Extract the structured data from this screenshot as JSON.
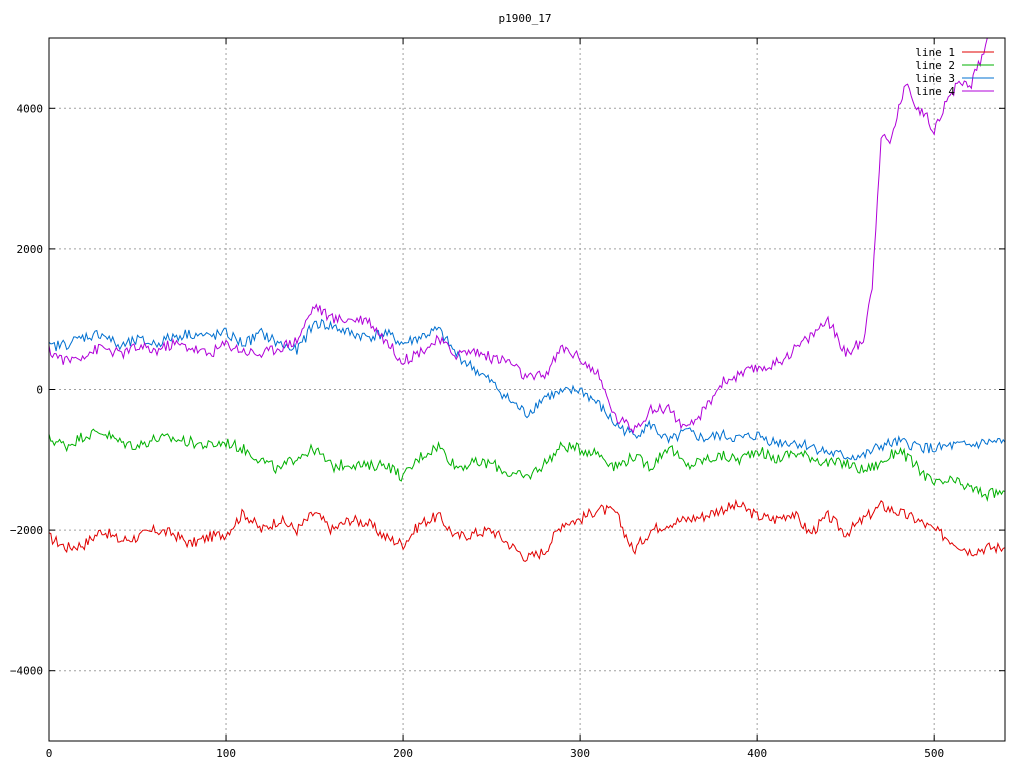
{
  "chart_data": {
    "type": "line",
    "title": "p1900_17",
    "xlabel": "",
    "ylabel": "",
    "xlim": [
      0,
      540
    ],
    "ylim": [
      -5000,
      5000
    ],
    "xticks": [
      0,
      100,
      200,
      300,
      400,
      500
    ],
    "yticks": [
      -4000,
      -2000,
      0,
      2000,
      4000
    ],
    "ytick_labels": [
      "−4000",
      "−2000",
      "0",
      "2000",
      "4000"
    ],
    "grid": true,
    "legend_position": "top-right",
    "series": [
      {
        "name": "line 1",
        "color": "#e00000",
        "x": [
          0,
          10,
          20,
          30,
          40,
          50,
          60,
          70,
          80,
          90,
          100,
          110,
          120,
          130,
          140,
          150,
          160,
          170,
          180,
          190,
          200,
          210,
          220,
          230,
          240,
          250,
          260,
          270,
          280,
          290,
          300,
          310,
          320,
          330,
          340,
          350,
          360,
          370,
          380,
          390,
          400,
          410,
          420,
          430,
          440,
          450,
          460,
          470,
          480,
          490,
          500,
          510,
          520,
          530,
          540
        ],
        "y": [
          -2100,
          -2250,
          -2200,
          -2000,
          -2150,
          -2100,
          -2000,
          -2050,
          -2200,
          -2100,
          -2050,
          -1750,
          -2000,
          -1850,
          -2000,
          -1750,
          -2000,
          -1850,
          -1900,
          -2100,
          -2200,
          -1900,
          -1800,
          -2100,
          -2050,
          -2000,
          -2200,
          -2400,
          -2300,
          -1900,
          -1850,
          -1700,
          -1750,
          -2300,
          -2000,
          -1900,
          -1850,
          -1800,
          -1700,
          -1650,
          -1800,
          -1850,
          -1750,
          -2050,
          -1800,
          -2050,
          -1850,
          -1650,
          -1750,
          -1850,
          -2000,
          -2150,
          -2300,
          -2250,
          -2250
        ]
      },
      {
        "name": "line 2",
        "color": "#00b000",
        "x": [
          0,
          10,
          20,
          30,
          40,
          50,
          60,
          70,
          80,
          90,
          100,
          110,
          120,
          130,
          140,
          150,
          160,
          170,
          180,
          190,
          200,
          210,
          220,
          230,
          240,
          250,
          260,
          270,
          280,
          290,
          300,
          310,
          320,
          330,
          340,
          350,
          360,
          370,
          380,
          390,
          400,
          410,
          420,
          430,
          440,
          450,
          460,
          470,
          480,
          490,
          500,
          510,
          520,
          530,
          540
        ],
        "y": [
          -700,
          -800,
          -650,
          -600,
          -750,
          -800,
          -700,
          -700,
          -750,
          -800,
          -750,
          -850,
          -1000,
          -1150,
          -950,
          -850,
          -1100,
          -1050,
          -1100,
          -1050,
          -1250,
          -950,
          -800,
          -1100,
          -1050,
          -1050,
          -1200,
          -1250,
          -1050,
          -800,
          -850,
          -900,
          -1100,
          -950,
          -1100,
          -800,
          -1100,
          -1000,
          -950,
          -1000,
          -850,
          -1000,
          -900,
          -950,
          -1050,
          -1050,
          -1150,
          -1050,
          -850,
          -1100,
          -1350,
          -1300,
          -1400,
          -1500,
          -1450
        ]
      },
      {
        "name": "line 3",
        "color": "#0070d0",
        "x": [
          0,
          10,
          20,
          30,
          40,
          50,
          60,
          70,
          80,
          90,
          100,
          110,
          120,
          130,
          140,
          150,
          160,
          170,
          180,
          190,
          200,
          210,
          220,
          230,
          240,
          250,
          260,
          270,
          280,
          290,
          300,
          310,
          320,
          330,
          340,
          350,
          360,
          370,
          380,
          390,
          400,
          410,
          420,
          430,
          440,
          450,
          460,
          470,
          480,
          490,
          500,
          510,
          520,
          530,
          540
        ],
        "y": [
          600,
          650,
          750,
          800,
          600,
          700,
          650,
          750,
          800,
          750,
          800,
          650,
          800,
          650,
          550,
          950,
          900,
          800,
          750,
          800,
          650,
          750,
          850,
          500,
          300,
          100,
          -150,
          -350,
          -100,
          -50,
          0,
          -200,
          -500,
          -650,
          -500,
          -750,
          -600,
          -700,
          -650,
          -700,
          -650,
          -750,
          -750,
          -800,
          -900,
          -950,
          -950,
          -800,
          -750,
          -800,
          -850,
          -800,
          -800,
          -750,
          -750
        ]
      },
      {
        "name": "line 4",
        "color": "#b000d8",
        "x": [
          0,
          10,
          20,
          30,
          40,
          50,
          60,
          70,
          80,
          90,
          100,
          110,
          120,
          130,
          140,
          150,
          160,
          170,
          180,
          190,
          200,
          210,
          220,
          230,
          240,
          250,
          260,
          270,
          280,
          290,
          300,
          310,
          320,
          330,
          340,
          350,
          360,
          370,
          380,
          390,
          400,
          410,
          420,
          430,
          440,
          450,
          460,
          465,
          470,
          475,
          480,
          485,
          490,
          495,
          500,
          505,
          510,
          515,
          520,
          525,
          530
        ],
        "y": [
          550,
          400,
          500,
          600,
          500,
          600,
          550,
          650,
          600,
          500,
          650,
          550,
          500,
          600,
          700,
          1200,
          1000,
          1000,
          1000,
          700,
          400,
          550,
          700,
          500,
          550,
          450,
          400,
          150,
          200,
          600,
          450,
          200,
          -400,
          -550,
          -300,
          -250,
          -600,
          -300,
          100,
          200,
          300,
          350,
          550,
          750,
          1000,
          500,
          700,
          1500,
          3600,
          3500,
          4000,
          4400,
          4000,
          3900,
          3700,
          4000,
          4200,
          4400,
          4300,
          4600,
          5000
        ]
      }
    ]
  }
}
